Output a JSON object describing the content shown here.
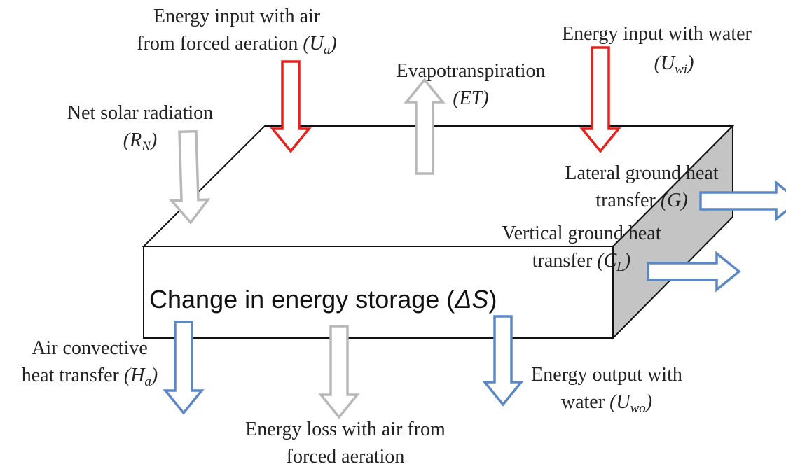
{
  "box": {
    "label": [
      [
        {
          "text": "Change in energy storage ("
        },
        {
          "text": "ΔS",
          "italic": true
        },
        {
          "text": ")"
        }
      ]
    ]
  },
  "labels": [
    {
      "id": "ua",
      "lines": [
        [
          {
            "text": "Energy input with air"
          }
        ],
        [
          {
            "text": "from forced aeration "
          },
          {
            "text": "(U",
            "italic": true
          },
          {
            "text": "a",
            "italic": true,
            "sub": true
          },
          {
            "text": ")",
            "italic": true
          }
        ]
      ]
    },
    {
      "id": "et",
      "lines": [
        [
          {
            "text": "Evapotranspiration"
          }
        ],
        [
          {
            "text": "(ET)",
            "italic": true
          }
        ]
      ]
    },
    {
      "id": "rn",
      "lines": [
        [
          {
            "text": "Net solar radiation"
          }
        ],
        [
          {
            "text": "(R",
            "italic": true
          },
          {
            "text": "N",
            "italic": true,
            "sub": true
          },
          {
            "text": ")",
            "italic": true
          }
        ]
      ]
    },
    {
      "id": "uwi",
      "lines": [
        [
          {
            "text": "Energy input with water"
          }
        ],
        [
          {
            "text": "(U",
            "italic": true
          },
          {
            "text": "wi",
            "italic": true,
            "sub": true
          },
          {
            "text": ")",
            "italic": true
          }
        ]
      ]
    },
    {
      "id": "g",
      "lines": [
        [
          {
            "text": "Lateral ground heat"
          }
        ],
        [
          {
            "text": "transfer "
          },
          {
            "text": "(G)",
            "italic": true
          }
        ]
      ]
    },
    {
      "id": "cl",
      "lines": [
        [
          {
            "text": "Vertical ground heat"
          }
        ],
        [
          {
            "text": "transfer "
          },
          {
            "text": "(C",
            "italic": true
          },
          {
            "text": "L",
            "italic": true,
            "sub": true
          },
          {
            "text": ")",
            "italic": true
          }
        ]
      ]
    },
    {
      "id": "ha",
      "lines": [
        [
          {
            "text": "Air convective"
          }
        ],
        [
          {
            "text": "heat transfer "
          },
          {
            "text": "(H",
            "italic": true
          },
          {
            "text": "a",
            "italic": true,
            "sub": true
          },
          {
            "text": ")",
            "italic": true
          }
        ]
      ]
    },
    {
      "id": "uwo",
      "lines": [
        [
          {
            "text": "Energy output with"
          }
        ],
        [
          {
            "text": "water "
          },
          {
            "text": "(U",
            "italic": true
          },
          {
            "text": "wo",
            "italic": true,
            "sub": true
          },
          {
            "text": ")",
            "italic": true
          }
        ]
      ]
    },
    {
      "id": "loss",
      "lines": [
        [
          {
            "text": "Energy loss with air from"
          }
        ],
        [
          {
            "text": "forced aeration"
          }
        ]
      ]
    }
  ]
}
